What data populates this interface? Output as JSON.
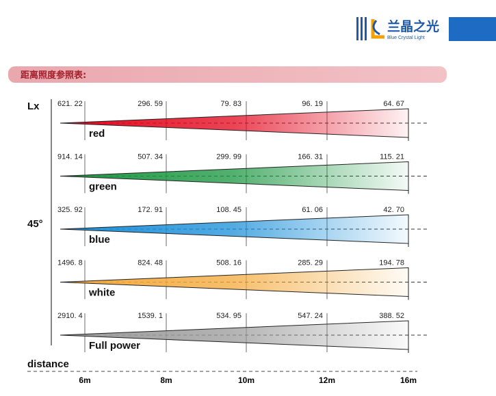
{
  "header": {
    "brand": "兰晶之光",
    "brand_en": "Blue Crystal Light"
  },
  "section_title": "距离照度参照表:",
  "unit_label": "Lx",
  "angle_label": "45°",
  "distance_label": "distance",
  "distances": [
    "6m",
    "8m",
    "10m",
    "12m",
    "16m"
  ],
  "rows": [
    {
      "label": "red",
      "color": "#e3061c",
      "values": [
        "621. 22",
        "296. 59",
        "79. 83",
        "96. 19",
        "64. 67"
      ]
    },
    {
      "label": "green",
      "color": "#1a9640",
      "values": [
        "914. 14",
        "507. 34",
        "299. 99",
        "166. 31",
        "115. 21"
      ]
    },
    {
      "label": "blue",
      "color": "#1b8fd9",
      "values": [
        "325. 92",
        "172. 91",
        "108. 45",
        "61. 06",
        "42. 70"
      ]
    },
    {
      "label": "white",
      "color": "#f4a93a",
      "values": [
        "1496. 8",
        "824. 48",
        "508. 16",
        "285. 29",
        "194. 78"
      ]
    },
    {
      "label": "Full power",
      "color": "#9a9a9a",
      "values": [
        "2910. 4",
        "1539. 1",
        "534. 95",
        "547. 24",
        "388. 52"
      ]
    }
  ]
}
